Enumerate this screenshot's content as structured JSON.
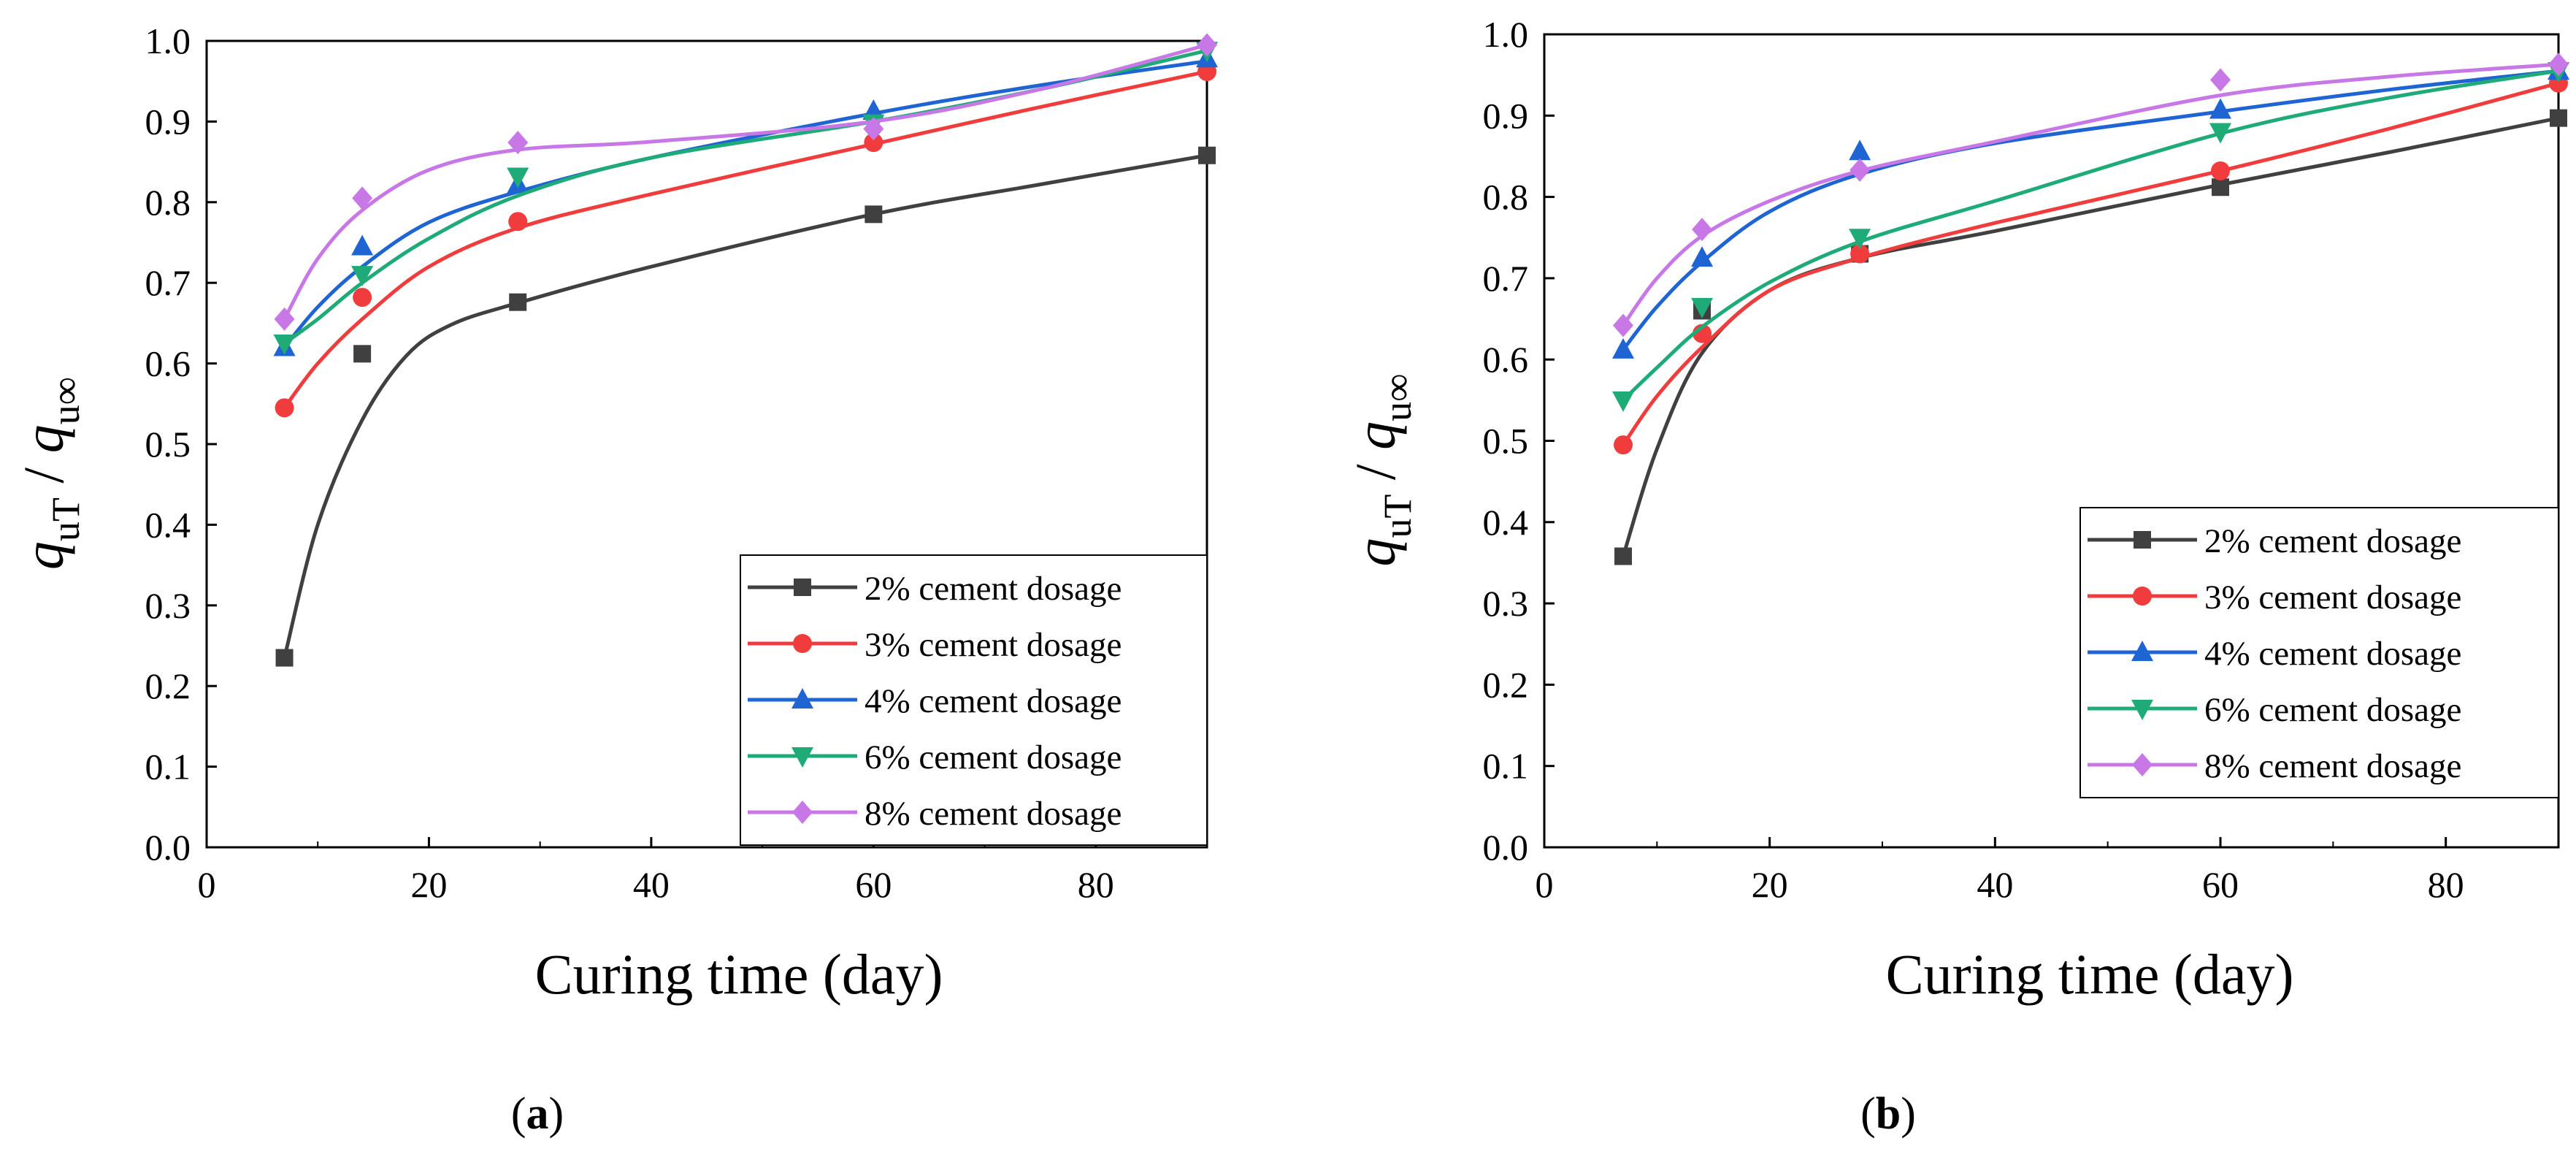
{
  "figure": {
    "panel_labels": [
      "(a)",
      "(b)"
    ]
  },
  "chart_data": [
    {
      "type": "scatter",
      "panel": "(a)",
      "title": "",
      "xlabel": "Curing time (day)",
      "ylabel": {
        "num_var": "q",
        "num_sub": "uT",
        "separator": "/",
        "den_var": "q",
        "den_sub": "u∞"
      },
      "xlim": [
        0,
        90
      ],
      "ylim": [
        0.0,
        1.0
      ],
      "xticks": [
        "0",
        "20",
        "40",
        "60",
        "80"
      ],
      "xtick_values": [
        0,
        20,
        40,
        60,
        80
      ],
      "yticks": [
        "0.0",
        "0.1",
        "0.2",
        "0.3",
        "0.4",
        "0.5",
        "0.6",
        "0.7",
        "0.8",
        "0.9",
        "1.0"
      ],
      "ytick_values": [
        0.0,
        0.1,
        0.2,
        0.3,
        0.4,
        0.5,
        0.6,
        0.7,
        0.8,
        0.9,
        1.0
      ],
      "legend_position": "bottom-right",
      "x": [
        7,
        14,
        28,
        60,
        90
      ],
      "series": [
        {
          "name": "2% cement dosage",
          "color": "#404040",
          "marker": "square",
          "values": [
            0.235,
            0.612,
            0.676,
            0.785,
            0.858
          ],
          "fit": [
            [
              7,
              0.235
            ],
            [
              10,
              0.4
            ],
            [
              14,
              0.53
            ],
            [
              18,
              0.61
            ],
            [
              22,
              0.648
            ],
            [
              28,
              0.675
            ],
            [
              40,
              0.72
            ],
            [
              60,
              0.785
            ],
            [
              75,
              0.822
            ],
            [
              90,
              0.858
            ]
          ]
        },
        {
          "name": "3% cement dosage",
          "color": "#f03c3c",
          "marker": "circle",
          "values": [
            0.545,
            0.682,
            0.776,
            0.874,
            0.962
          ],
          "fit": [
            [
              7,
              0.545
            ],
            [
              10,
              0.6
            ],
            [
              14,
              0.655
            ],
            [
              20,
              0.72
            ],
            [
              28,
              0.768
            ],
            [
              40,
              0.81
            ],
            [
              60,
              0.872
            ],
            [
              75,
              0.918
            ],
            [
              90,
              0.962
            ]
          ]
        },
        {
          "name": "4% cement dosage",
          "color": "#1e64d2",
          "marker": "triangle",
          "values": [
            0.62,
            0.745,
            0.822,
            0.913,
            0.978
          ],
          "fit": [
            [
              7,
              0.62
            ],
            [
              10,
              0.67
            ],
            [
              14,
              0.72
            ],
            [
              20,
              0.775
            ],
            [
              28,
              0.813
            ],
            [
              40,
              0.855
            ],
            [
              60,
              0.91
            ],
            [
              75,
              0.945
            ],
            [
              90,
              0.975
            ]
          ]
        },
        {
          "name": "6% cement dosage",
          "color": "#1eab78",
          "marker": "tridown",
          "values": [
            0.625,
            0.71,
            0.832,
            0.898,
            0.988
          ],
          "fit": [
            [
              7,
              0.625
            ],
            [
              10,
              0.655
            ],
            [
              14,
              0.7
            ],
            [
              20,
              0.755
            ],
            [
              28,
              0.808
            ],
            [
              40,
              0.855
            ],
            [
              60,
              0.9
            ],
            [
              75,
              0.94
            ],
            [
              90,
              0.988
            ]
          ]
        },
        {
          "name": "8% cement dosage",
          "color": "#c878e6",
          "marker": "diamond",
          "values": [
            0.655,
            0.805,
            0.874,
            0.891,
            0.995
          ],
          "fit": [
            [
              7,
              0.655
            ],
            [
              10,
              0.73
            ],
            [
              14,
              0.79
            ],
            [
              20,
              0.84
            ],
            [
              28,
              0.865
            ],
            [
              40,
              0.875
            ],
            [
              60,
              0.9
            ],
            [
              75,
              0.94
            ],
            [
              90,
              0.995
            ]
          ]
        }
      ]
    },
    {
      "type": "scatter",
      "panel": "(b)",
      "title": "",
      "xlabel": "Curing time (day)",
      "ylabel": {
        "num_var": "q",
        "num_sub": "uT",
        "separator": "/",
        "den_var": "q",
        "den_sub": "u∞"
      },
      "xlim": [
        0,
        90
      ],
      "ylim": [
        0.0,
        1.0
      ],
      "xticks": [
        "0",
        "20",
        "40",
        "60",
        "80"
      ],
      "xtick_values": [
        0,
        20,
        40,
        60,
        80
      ],
      "yticks": [
        "0.0",
        "0.1",
        "0.2",
        "0.3",
        "0.4",
        "0.5",
        "0.6",
        "0.7",
        "0.8",
        "0.9",
        "1.0"
      ],
      "ytick_values": [
        0.0,
        0.1,
        0.2,
        0.3,
        0.4,
        0.5,
        0.6,
        0.7,
        0.8,
        0.9,
        1.0
      ],
      "legend_position": "bottom-right",
      "x": [
        7,
        14,
        28,
        60,
        90
      ],
      "series": [
        {
          "name": "2% cement dosage",
          "color": "#404040",
          "marker": "square",
          "values": [
            0.358,
            0.66,
            0.73,
            0.812,
            0.897
          ],
          "fit": [
            [
              7,
              0.358
            ],
            [
              10,
              0.49
            ],
            [
              14,
              0.608
            ],
            [
              20,
              0.685
            ],
            [
              28,
              0.725
            ],
            [
              40,
              0.758
            ],
            [
              60,
              0.815
            ],
            [
              75,
              0.855
            ],
            [
              90,
              0.897
            ]
          ]
        },
        {
          "name": "3% cement dosage",
          "color": "#f03c3c",
          "marker": "circle",
          "values": [
            0.495,
            0.632,
            0.73,
            0.832,
            0.94
          ],
          "fit": [
            [
              7,
              0.495
            ],
            [
              10,
              0.555
            ],
            [
              14,
              0.615
            ],
            [
              20,
              0.685
            ],
            [
              28,
              0.725
            ],
            [
              40,
              0.768
            ],
            [
              60,
              0.832
            ],
            [
              75,
              0.884
            ],
            [
              90,
              0.94
            ]
          ]
        },
        {
          "name": "4% cement dosage",
          "color": "#1e64d2",
          "marker": "triangle",
          "values": [
            0.612,
            0.725,
            0.856,
            0.907,
            0.955
          ],
          "fit": [
            [
              7,
              0.612
            ],
            [
              10,
              0.665
            ],
            [
              14,
              0.72
            ],
            [
              20,
              0.782
            ],
            [
              28,
              0.828
            ],
            [
              40,
              0.866
            ],
            [
              60,
              0.905
            ],
            [
              75,
              0.932
            ],
            [
              90,
              0.955
            ]
          ]
        },
        {
          "name": "6% cement dosage",
          "color": "#1eab78",
          "marker": "tridown",
          "values": [
            0.55,
            0.665,
            0.75,
            0.88,
            0.955
          ],
          "fit": [
            [
              7,
              0.55
            ],
            [
              10,
              0.59
            ],
            [
              14,
              0.64
            ],
            [
              20,
              0.695
            ],
            [
              28,
              0.745
            ],
            [
              40,
              0.795
            ],
            [
              60,
              0.878
            ],
            [
              75,
              0.922
            ],
            [
              90,
              0.955
            ]
          ]
        },
        {
          "name": "8% cement dosage",
          "color": "#c878e6",
          "marker": "diamond",
          "values": [
            0.642,
            0.76,
            0.833,
            0.944,
            0.963
          ],
          "fit": [
            [
              7,
              0.642
            ],
            [
              10,
              0.7
            ],
            [
              14,
              0.752
            ],
            [
              20,
              0.795
            ],
            [
              28,
              0.832
            ],
            [
              40,
              0.868
            ],
            [
              60,
              0.925
            ],
            [
              75,
              0.948
            ],
            [
              90,
              0.963
            ]
          ]
        }
      ]
    }
  ]
}
